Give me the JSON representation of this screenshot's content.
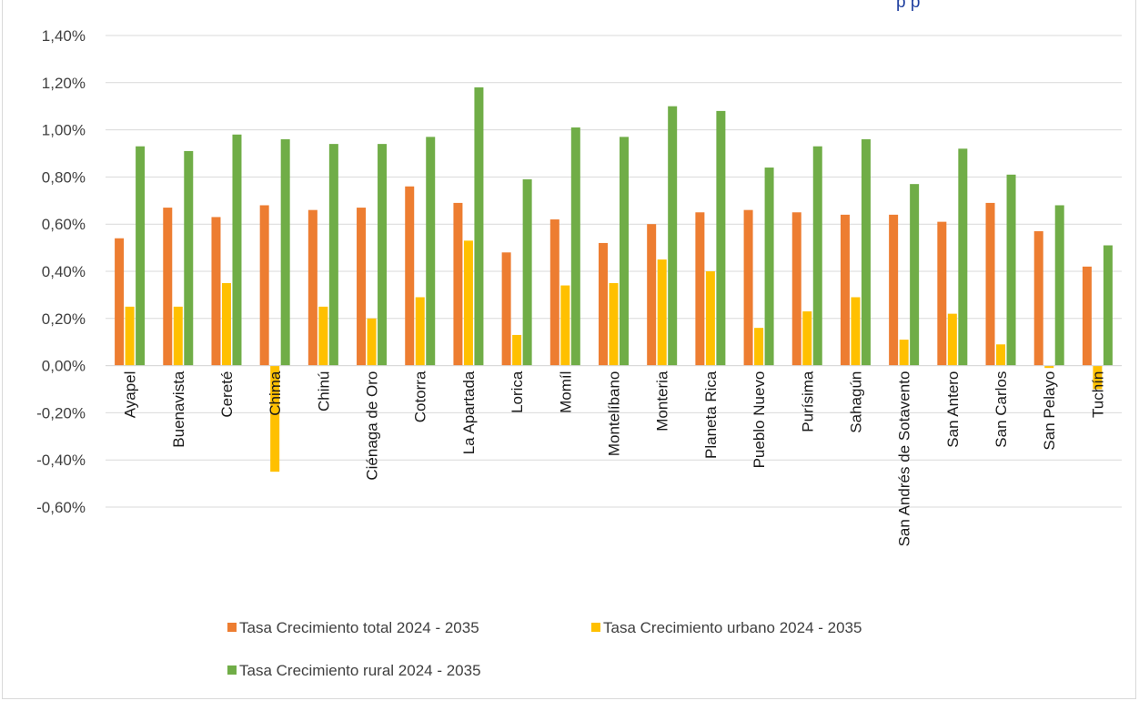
{
  "chart_data": {
    "type": "bar",
    "title_fragment": "p  p",
    "categories": [
      "Ayapel",
      "Buenavista",
      "Cereté",
      "Chima",
      "Chinú",
      "Ciénaga de Oro",
      "Cotorra",
      "La Apartada",
      "Lorica",
      "Momíl",
      "Montelíbano",
      "Monteria",
      "Planeta Rica",
      "Pueblo Nuevo",
      "Purísima",
      "Sahagún",
      "San Andrés de Sotavento",
      "San Antero",
      "San Carlos",
      "San Pelayo",
      "Tuchín"
    ],
    "series": [
      {
        "name": "Tasa Crecimiento  total  2024 - 2035",
        "color": "#ed7d31",
        "values": [
          0.54,
          0.67,
          0.63,
          0.68,
          0.66,
          0.67,
          0.76,
          0.69,
          0.48,
          0.62,
          0.52,
          0.6,
          0.65,
          0.66,
          0.65,
          0.64,
          0.64,
          0.61,
          0.69,
          0.57,
          0.42
        ]
      },
      {
        "name": "Tasa Crecimiento  urbano 2024 - 2035",
        "color": "#ffc000",
        "values": [
          0.25,
          0.25,
          0.35,
          -0.45,
          0.25,
          0.2,
          0.29,
          0.53,
          0.13,
          0.34,
          0.35,
          0.45,
          0.4,
          0.16,
          0.23,
          0.29,
          0.11,
          0.22,
          0.09,
          -0.01,
          -0.1
        ]
      },
      {
        "name": "Tasa Crecimiento  rural 2024 - 2035",
        "color": "#70ad47",
        "values": [
          0.93,
          0.91,
          0.98,
          0.96,
          0.94,
          0.94,
          0.97,
          1.18,
          0.79,
          1.01,
          0.97,
          1.1,
          1.08,
          0.84,
          0.93,
          0.96,
          0.77,
          0.92,
          0.81,
          0.68,
          0.51
        ]
      }
    ],
    "ylim": [
      -0.6,
      1.4
    ],
    "yticks": [
      "-0,60%",
      "-0,40%",
      "-0,20%",
      "0,00%",
      "0,20%",
      "0,40%",
      "0,60%",
      "0,80%",
      "1,00%",
      "1,20%",
      "1,40%"
    ],
    "ytick_values": [
      -0.6,
      -0.4,
      -0.2,
      0,
      0.2,
      0.4,
      0.6,
      0.8,
      1.0,
      1.2,
      1.4
    ],
    "grid": true,
    "legend_position": "bottom"
  }
}
